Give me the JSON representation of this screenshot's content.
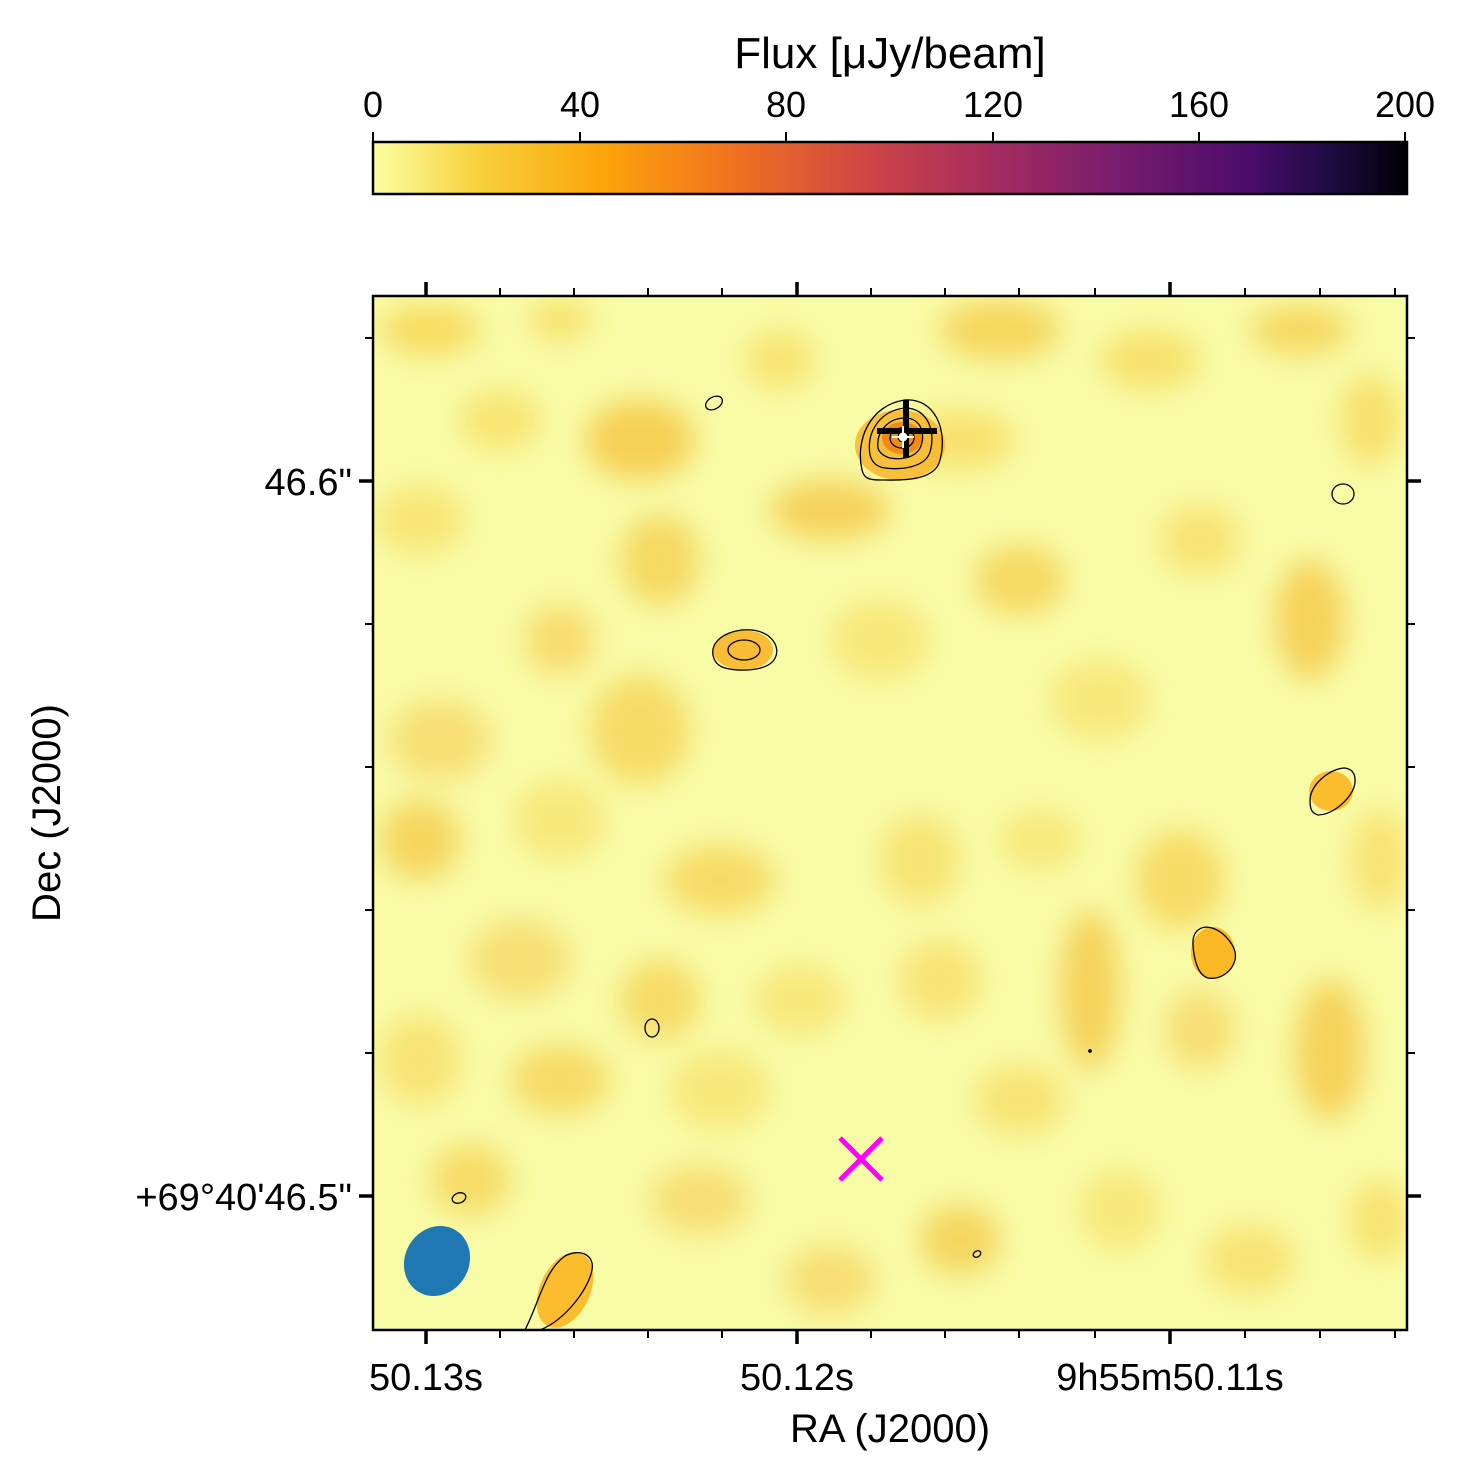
{
  "chart_data": {
    "type": "heatmap",
    "colorbar": {
      "label": "Flux [μJy/beam]",
      "ticks": [
        "0",
        "40",
        "80",
        "120",
        "160",
        "200"
      ],
      "range": [
        0,
        200
      ],
      "colormap": "inferno_r",
      "placement": "top"
    },
    "xlabel": "RA (J2000)",
    "ylabel": "Dec (J2000)",
    "x_tick_labels": [
      "50.13s",
      "50.12s",
      "9h55m50.11s"
    ],
    "y_tick_labels": [
      "46.6\"",
      "+69°40'46.5\""
    ],
    "grid": false,
    "sources": [
      {
        "label": "bright-source",
        "flux_peak_approx": 60,
        "contour_levels": 4
      },
      {
        "label": "mid-left-source",
        "flux_peak_approx": 38,
        "contour_levels": 2
      },
      {
        "label": "right-lower-source",
        "flux_peak_approx": 32,
        "contour_levels": 1
      },
      {
        "label": "right-source",
        "flux_peak_approx": 30,
        "contour_levels": 1
      },
      {
        "label": "bottom-left-source",
        "flux_peak_approx": 30,
        "contour_levels": 1
      }
    ],
    "markers": [
      {
        "type": "cross",
        "name": "bright-source-cross",
        "color": "#000000"
      },
      {
        "type": "x",
        "name": "magenta-x",
        "color": "#ff00ff"
      }
    ],
    "beam": {
      "color": "#1f77b4",
      "position": "bottom-left"
    }
  },
  "colors": {
    "background_field": "#f8fba6",
    "beam": "#1f77b4",
    "x_marker": "#ff00ff"
  }
}
